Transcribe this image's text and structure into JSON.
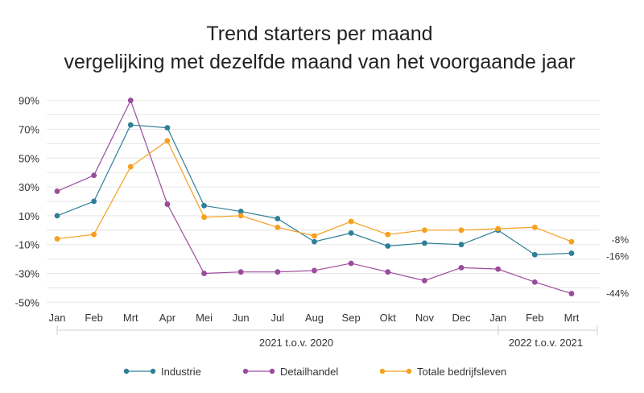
{
  "chart_data": {
    "type": "line",
    "title": [
      "Trend starters per maand",
      "vergelijking met dezelfde maand van het voorgaande jaar"
    ],
    "categories": [
      "Jan",
      "Feb",
      "Mrt",
      "Apr",
      "Mei",
      "Jun",
      "Jul",
      "Aug",
      "Sep",
      "Okt",
      "Nov",
      "Dec",
      "Jan",
      "Feb",
      "Mrt"
    ],
    "period_groups": [
      {
        "label": "2021 t.o.v. 2020",
        "from": 0,
        "to": 11
      },
      {
        "label": "2022 t.o.v. 2021",
        "from": 12,
        "to": 14
      }
    ],
    "ylim": [
      -50,
      90
    ],
    "yticks": [
      -50,
      -30,
      -10,
      10,
      30,
      50,
      70,
      90
    ],
    "ytick_labels": [
      "-50%",
      "-30%",
      "-10%",
      "10%",
      "30%",
      "50%",
      "70%",
      "90%"
    ],
    "grid": true,
    "legend_position": "bottom",
    "series": [
      {
        "name": "Industrie",
        "color": "#2e7f97",
        "values": [
          10,
          20,
          73,
          71,
          17,
          13,
          8,
          -8,
          -2,
          -11,
          -9,
          -10,
          0,
          -17,
          -16
        ],
        "end_label": "-16%"
      },
      {
        "name": "Detailhandel",
        "color": "#9b4b9b",
        "values": [
          27,
          38,
          90,
          18,
          -30,
          -29,
          -29,
          -28,
          -23,
          -29,
          -35,
          -26,
          -27,
          -36,
          -44
        ],
        "end_label": "-44%"
      },
      {
        "name": "Totale bedrijfsleven",
        "color": "#f7a01d",
        "values": [
          -6,
          -3,
          44,
          62,
          9,
          10,
          2,
          -4,
          6,
          -3,
          0,
          0,
          1,
          2,
          -8
        ],
        "end_label": "-8%"
      }
    ]
  }
}
